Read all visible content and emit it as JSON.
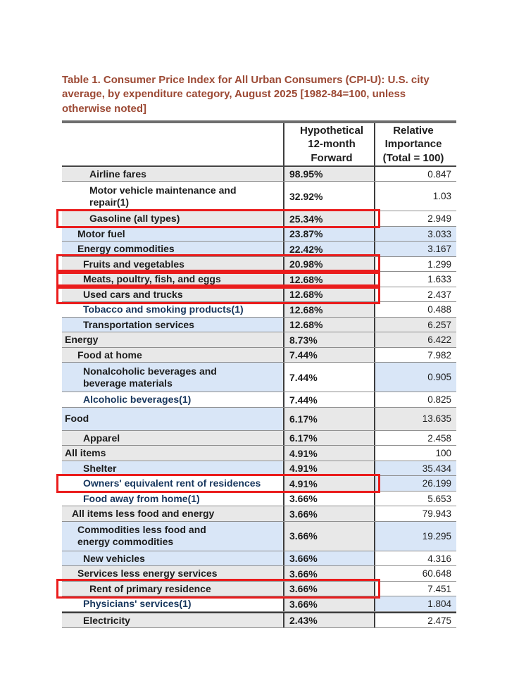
{
  "title": "Table 1. Consumer Price Index for All Urban Consumers (CPI-U): U.S. city average, by expenditure category, August 2025 [1982-84=100, unless otherwise noted]",
  "columns": {
    "category_header": "",
    "forward_header": "Hypothetical\n12-month\nForward",
    "importance_header": "Relative\nImportance\n(Total = 100)"
  },
  "colors": {
    "title_text": "#9c4934",
    "navy_text": "#17365d",
    "black_text": "#1c1c1c",
    "shade_gray": "#e8e8e8",
    "shade_blue": "#d9e6f7",
    "shade_white": "#ffffff",
    "highlight_box_red": "#ea1c1c"
  },
  "rows": [
    {
      "name": "Airline fares",
      "forward": "98.95%",
      "importance": "0.847",
      "indent": 4,
      "shades": [
        "g",
        "g",
        "w"
      ],
      "boxed": false,
      "navy": false,
      "two_line": false,
      "tall": false,
      "thick_top": false,
      "nowrap": false
    },
    {
      "name": "Motor vehicle maintenance and\nrepair(1)",
      "forward": "32.92%",
      "importance": "1.03",
      "indent": 4,
      "shades": [
        "w",
        "w",
        "w"
      ],
      "boxed": false,
      "navy": false,
      "two_line": true,
      "tall": false,
      "thick_top": false,
      "nowrap": false
    },
    {
      "name": "Gasoline (all types)",
      "forward": "25.34%",
      "importance": "2.949",
      "indent": 4,
      "shades": [
        "g",
        "g",
        "w"
      ],
      "boxed": true,
      "navy": false,
      "two_line": false,
      "tall": false,
      "thick_top": false,
      "nowrap": false
    },
    {
      "name": "Motor fuel",
      "forward": "23.87%",
      "importance": "3.033",
      "indent": 2,
      "shades": [
        "b",
        "b",
        "b"
      ],
      "boxed": false,
      "navy": false,
      "two_line": false,
      "tall": false,
      "thick_top": false,
      "nowrap": false
    },
    {
      "name": "Energy commodities",
      "forward": "22.42%",
      "importance": "3.167",
      "indent": 2,
      "shades": [
        "b",
        "b",
        "b"
      ],
      "boxed": false,
      "navy": false,
      "two_line": false,
      "tall": false,
      "thick_top": false,
      "nowrap": false
    },
    {
      "name": "Fruits and vegetables",
      "forward": "20.98%",
      "importance": "1.299",
      "indent": 3,
      "shades": [
        "g",
        "g",
        "w"
      ],
      "boxed": true,
      "navy": false,
      "two_line": false,
      "tall": false,
      "thick_top": false,
      "nowrap": false
    },
    {
      "name": "Meats, poultry, fish, and eggs",
      "forward": "12.68%",
      "importance": "1.633",
      "indent": 3,
      "shades": [
        "g",
        "g",
        "w"
      ],
      "boxed": true,
      "navy": false,
      "two_line": false,
      "tall": false,
      "thick_top": false,
      "nowrap": false
    },
    {
      "name": "Used cars and trucks",
      "forward": "12.68%",
      "importance": "2.437",
      "indent": 3,
      "shades": [
        "g",
        "g",
        "w"
      ],
      "boxed": true,
      "navy": false,
      "two_line": false,
      "tall": false,
      "thick_top": false,
      "nowrap": false
    },
    {
      "name": "Tobacco and smoking products(1)",
      "forward": "12.68%",
      "importance": "0.488",
      "indent": 3,
      "shades": [
        "w",
        "g",
        "w"
      ],
      "boxed": false,
      "navy": true,
      "two_line": false,
      "tall": false,
      "thick_top": false,
      "nowrap": false
    },
    {
      "name": "Transportation services",
      "forward": "12.68%",
      "importance": "6.257",
      "indent": 3,
      "shades": [
        "b",
        "g",
        "g"
      ],
      "boxed": false,
      "navy": false,
      "two_line": false,
      "tall": false,
      "thick_top": false,
      "nowrap": false
    },
    {
      "name": "Energy",
      "forward": "8.73%",
      "importance": "6.422",
      "indent": 0,
      "shades": [
        "g",
        "g",
        "g"
      ],
      "boxed": false,
      "navy": false,
      "two_line": false,
      "tall": false,
      "thick_top": false,
      "nowrap": false
    },
    {
      "name": "Food at home",
      "forward": "7.44%",
      "importance": "7.982",
      "indent": 2,
      "shades": [
        "g",
        "g",
        "w"
      ],
      "boxed": false,
      "navy": false,
      "two_line": false,
      "tall": false,
      "thick_top": false,
      "nowrap": false
    },
    {
      "name": "Nonalcoholic beverages and\nbeverage materials",
      "forward": "7.44%",
      "importance": "0.905",
      "indent": 3,
      "shades": [
        "b",
        "w",
        "b"
      ],
      "boxed": false,
      "navy": false,
      "two_line": true,
      "tall": false,
      "thick_top": false,
      "nowrap": false
    },
    {
      "name": "Alcoholic beverages(1)",
      "forward": "7.44%",
      "importance": "0.825",
      "indent": 3,
      "shades": [
        "w",
        "w",
        "w"
      ],
      "boxed": false,
      "navy": true,
      "two_line": false,
      "tall": false,
      "thick_top": false,
      "nowrap": false
    },
    {
      "name": "Food",
      "forward": "6.17%",
      "importance": "13.635",
      "indent": 0,
      "shades": [
        "b",
        "g",
        "g"
      ],
      "boxed": false,
      "navy": false,
      "two_line": false,
      "tall": true,
      "thick_top": false,
      "nowrap": false
    },
    {
      "name": "Apparel",
      "forward": "6.17%",
      "importance": "2.458",
      "indent": 3,
      "shades": [
        "g",
        "g",
        "w"
      ],
      "boxed": false,
      "navy": false,
      "two_line": false,
      "tall": false,
      "thick_top": false,
      "nowrap": false
    },
    {
      "name": "All items",
      "forward": "4.91%",
      "importance": "100",
      "indent": 0,
      "shades": [
        "g",
        "g",
        "w"
      ],
      "boxed": false,
      "navy": false,
      "two_line": false,
      "tall": false,
      "thick_top": false,
      "nowrap": false
    },
    {
      "name": "Shelter",
      "forward": "4.91%",
      "importance": "35.434",
      "indent": 3,
      "shades": [
        "b",
        "g",
        "b"
      ],
      "boxed": false,
      "navy": false,
      "two_line": false,
      "tall": false,
      "thick_top": false,
      "nowrap": false
    },
    {
      "name": "Owners' equivalent rent of residences",
      "forward": "4.91%",
      "importance": "26.199",
      "indent": 3,
      "shades": [
        "w",
        "g",
        "b"
      ],
      "boxed": true,
      "navy": true,
      "two_line": false,
      "tall": false,
      "thick_top": false,
      "nowrap": true
    },
    {
      "name": "Food away from home(1)",
      "forward": "3.66%",
      "importance": "5.653",
      "indent": 3,
      "shades": [
        "w",
        "w",
        "w"
      ],
      "boxed": false,
      "navy": true,
      "two_line": false,
      "tall": false,
      "thick_top": false,
      "nowrap": false
    },
    {
      "name": "All items less food and energy",
      "forward": "3.66%",
      "importance": "79.943",
      "indent": 1,
      "shades": [
        "g",
        "g",
        "w"
      ],
      "boxed": false,
      "navy": false,
      "two_line": false,
      "tall": false,
      "thick_top": false,
      "nowrap": false
    },
    {
      "name": "Commodities less food and\nenergy commodities",
      "forward": "3.66%",
      "importance": "19.295",
      "indent": 2,
      "shades": [
        "b",
        "g",
        "b"
      ],
      "boxed": false,
      "navy": false,
      "two_line": true,
      "tall": false,
      "thick_top": false,
      "nowrap": false
    },
    {
      "name": "New vehicles",
      "forward": "3.66%",
      "importance": "4.316",
      "indent": 3,
      "shades": [
        "b",
        "b",
        "w"
      ],
      "boxed": false,
      "navy": false,
      "two_line": false,
      "tall": false,
      "thick_top": false,
      "nowrap": false
    },
    {
      "name": "Services less energy services",
      "forward": "3.66%",
      "importance": "60.648",
      "indent": 2,
      "shades": [
        "g",
        "g",
        "w"
      ],
      "boxed": false,
      "navy": false,
      "two_line": false,
      "tall": false,
      "thick_top": false,
      "nowrap": false
    },
    {
      "name": "Rent of primary residence",
      "forward": "3.66%",
      "importance": "7.451",
      "indent": 4,
      "shades": [
        "g",
        "g",
        "w"
      ],
      "boxed": true,
      "navy": false,
      "two_line": false,
      "tall": false,
      "thick_top": false,
      "nowrap": false
    },
    {
      "name": "Physicians' services(1)",
      "forward": "3.66%",
      "importance": "1.804",
      "indent": 3,
      "shades": [
        "w",
        "g",
        "b"
      ],
      "boxed": false,
      "navy": true,
      "two_line": false,
      "tall": false,
      "thick_top": false,
      "nowrap": false
    },
    {
      "name": "Electricity",
      "forward": "2.43%",
      "importance": "2.475",
      "indent": 3,
      "shades": [
        "g",
        "g",
        "w"
      ],
      "boxed": false,
      "navy": false,
      "two_line": false,
      "tall": false,
      "thick_top": true,
      "nowrap": false
    }
  ]
}
